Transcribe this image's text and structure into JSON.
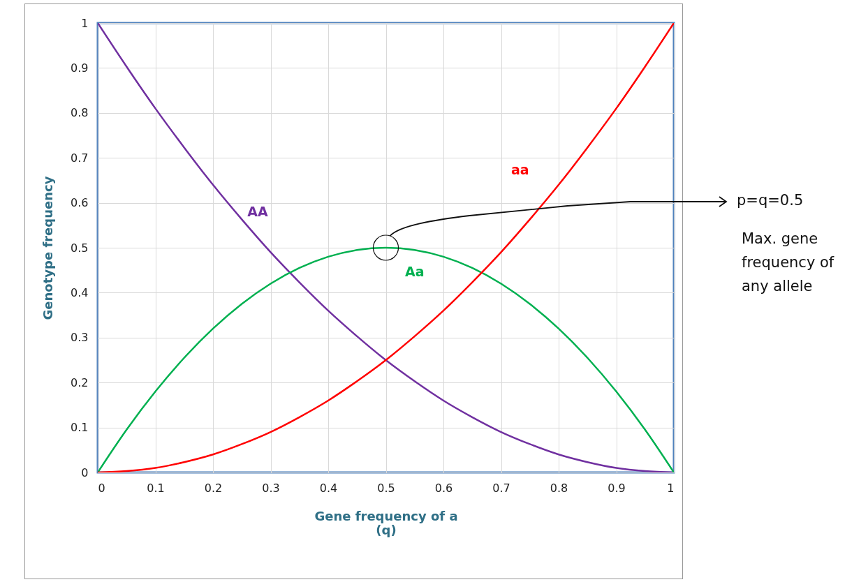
{
  "chart_data": {
    "type": "line",
    "xlabel": "Gene frequency of a\n(q)",
    "ylabel": "Genotype frequency",
    "x": [
      0,
      0.05,
      0.1,
      0.15,
      0.2,
      0.25,
      0.3,
      0.35,
      0.4,
      0.45,
      0.5,
      0.55,
      0.6,
      0.65,
      0.7,
      0.75,
      0.8,
      0.85,
      0.9,
      0.95,
      1
    ],
    "series": [
      {
        "name": "AA",
        "color": "#7030a0",
        "values": [
          1,
          0.903,
          0.81,
          0.723,
          0.64,
          0.563,
          0.49,
          0.423,
          0.36,
          0.303,
          0.25,
          0.203,
          0.16,
          0.123,
          0.09,
          0.063,
          0.04,
          0.023,
          0.01,
          0.003,
          0
        ]
      },
      {
        "name": "Aa",
        "color": "#00b050",
        "values": [
          0,
          0.095,
          0.18,
          0.255,
          0.32,
          0.375,
          0.42,
          0.455,
          0.48,
          0.495,
          0.5,
          0.495,
          0.48,
          0.455,
          0.42,
          0.375,
          0.32,
          0.255,
          0.18,
          0.095,
          0
        ]
      },
      {
        "name": "aa",
        "color": "#ff0000",
        "values": [
          0,
          0.003,
          0.01,
          0.023,
          0.04,
          0.063,
          0.09,
          0.123,
          0.16,
          0.203,
          0.25,
          0.303,
          0.36,
          0.423,
          0.49,
          0.563,
          0.64,
          0.723,
          0.81,
          0.903,
          1
        ]
      }
    ],
    "xlim": [
      0,
      1
    ],
    "ylim": [
      0,
      1
    ],
    "xticks": [
      0,
      0.1,
      0.2,
      0.3,
      0.4,
      0.5,
      0.6,
      0.7,
      0.8,
      0.9,
      1
    ],
    "yticks": [
      0,
      0.1,
      0.2,
      0.3,
      0.4,
      0.5,
      0.6,
      0.7,
      0.8,
      0.9,
      1
    ],
    "grid": true,
    "legend": false,
    "marker": "none",
    "line_style": "solid",
    "annotations": [
      "p=q=0.5",
      "Max. gene frequency of any allele"
    ]
  }
}
